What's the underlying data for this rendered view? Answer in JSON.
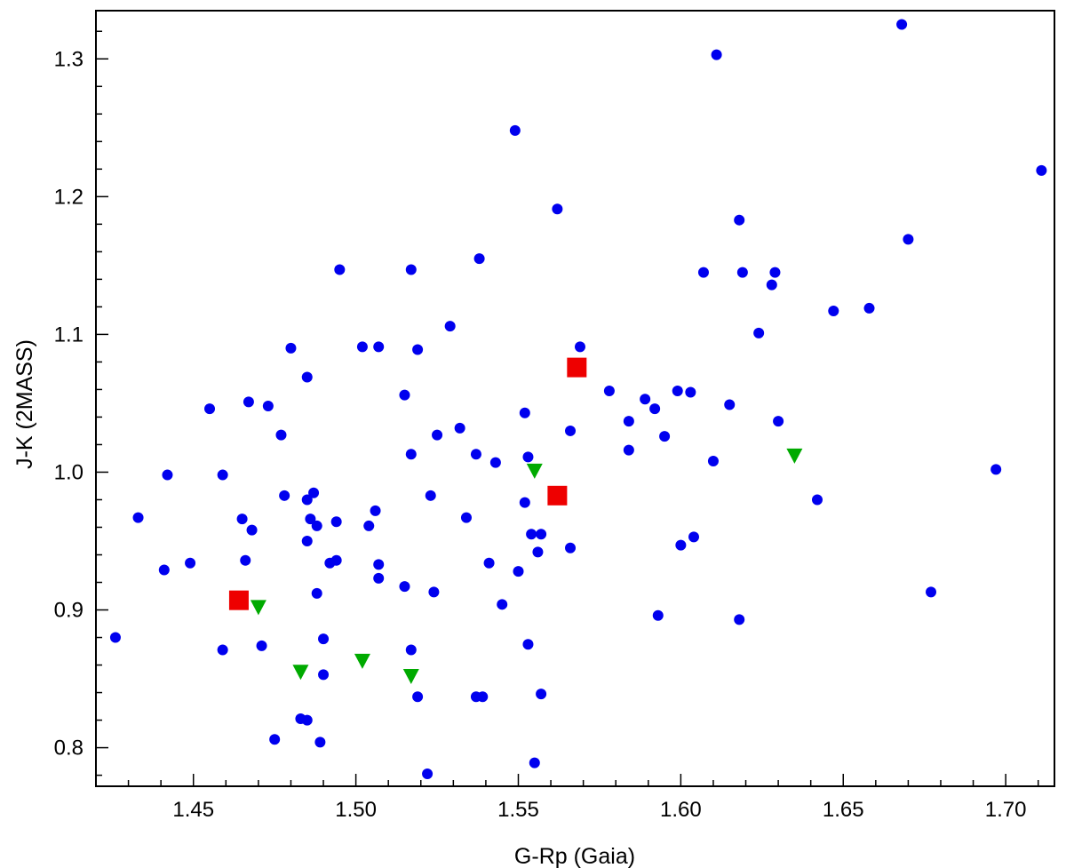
{
  "chart_data": {
    "type": "scatter",
    "title": "",
    "xlabel": "G-Rp (Gaia)",
    "ylabel": "J-K (2MASS)",
    "xlim": [
      1.42,
      1.715
    ],
    "ylim": [
      0.772,
      1.335
    ],
    "x_ticks": [
      "1.45",
      "1.50",
      "1.55",
      "1.60",
      "1.65",
      "1.70"
    ],
    "y_ticks": [
      "0.8",
      "0.9",
      "1.0",
      "1.1",
      "1.2",
      "1.3"
    ],
    "grid": false,
    "series": [
      {
        "marker": "circle",
        "color": "#0000ee",
        "points": [
          [
            1.668,
            1.325
          ],
          [
            1.611,
            1.303
          ],
          [
            1.549,
            1.248
          ],
          [
            1.711,
            1.219
          ],
          [
            1.562,
            1.191
          ],
          [
            1.618,
            1.183
          ],
          [
            1.67,
            1.169
          ],
          [
            1.538,
            1.155
          ],
          [
            1.495,
            1.147
          ],
          [
            1.517,
            1.147
          ],
          [
            1.607,
            1.145
          ],
          [
            1.619,
            1.145
          ],
          [
            1.629,
            1.145
          ],
          [
            1.628,
            1.136
          ],
          [
            1.658,
            1.119
          ],
          [
            1.647,
            1.117
          ],
          [
            1.529,
            1.106
          ],
          [
            1.624,
            1.101
          ],
          [
            1.48,
            1.09
          ],
          [
            1.502,
            1.091
          ],
          [
            1.507,
            1.091
          ],
          [
            1.519,
            1.089
          ],
          [
            1.569,
            1.091
          ],
          [
            1.485,
            1.069
          ],
          [
            1.578,
            1.059
          ],
          [
            1.599,
            1.059
          ],
          [
            1.603,
            1.058
          ],
          [
            1.515,
            1.056
          ],
          [
            1.589,
            1.053
          ],
          [
            1.467,
            1.051
          ],
          [
            1.615,
            1.049
          ],
          [
            1.473,
            1.048
          ],
          [
            1.455,
            1.046
          ],
          [
            1.592,
            1.046
          ],
          [
            1.552,
            1.043
          ],
          [
            1.584,
            1.037
          ],
          [
            1.63,
            1.037
          ],
          [
            1.532,
            1.032
          ],
          [
            1.566,
            1.03
          ],
          [
            1.477,
            1.027
          ],
          [
            1.525,
            1.027
          ],
          [
            1.595,
            1.026
          ],
          [
            1.584,
            1.016
          ],
          [
            1.517,
            1.013
          ],
          [
            1.537,
            1.013
          ],
          [
            1.553,
            1.011
          ],
          [
            1.61,
            1.008
          ],
          [
            1.543,
            1.007
          ],
          [
            1.442,
            0.998
          ],
          [
            1.459,
            0.998
          ],
          [
            1.697,
            1.002
          ],
          [
            1.487,
            0.985
          ],
          [
            1.478,
            0.983
          ],
          [
            1.523,
            0.983
          ],
          [
            1.485,
            0.98
          ],
          [
            1.642,
            0.98
          ],
          [
            1.552,
            0.978
          ],
          [
            1.488,
            0.961
          ],
          [
            1.506,
            0.972
          ],
          [
            1.433,
            0.967
          ],
          [
            1.465,
            0.966
          ],
          [
            1.486,
            0.966
          ],
          [
            1.494,
            0.964
          ],
          [
            1.534,
            0.967
          ],
          [
            1.504,
            0.961
          ],
          [
            1.468,
            0.958
          ],
          [
            1.554,
            0.955
          ],
          [
            1.557,
            0.955
          ],
          [
            1.604,
            0.953
          ],
          [
            1.485,
            0.95
          ],
          [
            1.6,
            0.947
          ],
          [
            1.566,
            0.945
          ],
          [
            1.556,
            0.942
          ],
          [
            1.466,
            0.936
          ],
          [
            1.494,
            0.936
          ],
          [
            1.492,
            0.934
          ],
          [
            1.507,
            0.933
          ],
          [
            1.449,
            0.934
          ],
          [
            1.541,
            0.934
          ],
          [
            1.441,
            0.929
          ],
          [
            1.55,
            0.928
          ],
          [
            1.507,
            0.923
          ],
          [
            1.515,
            0.917
          ],
          [
            1.488,
            0.912
          ],
          [
            1.524,
            0.913
          ],
          [
            1.677,
            0.913
          ],
          [
            1.545,
            0.904
          ],
          [
            1.593,
            0.896
          ],
          [
            1.618,
            0.893
          ],
          [
            1.426,
            0.88
          ],
          [
            1.49,
            0.879
          ],
          [
            1.553,
            0.875
          ],
          [
            1.471,
            0.874
          ],
          [
            1.459,
            0.871
          ],
          [
            1.517,
            0.871
          ],
          [
            1.49,
            0.853
          ],
          [
            1.557,
            0.839
          ],
          [
            1.519,
            0.837
          ],
          [
            1.537,
            0.837
          ],
          [
            1.539,
            0.837
          ],
          [
            1.483,
            0.821
          ],
          [
            1.485,
            0.82
          ],
          [
            1.475,
            0.806
          ],
          [
            1.489,
            0.804
          ],
          [
            1.555,
            0.789
          ],
          [
            1.522,
            0.781
          ]
        ]
      },
      {
        "marker": "square",
        "color": "#ee0000",
        "points": [
          [
            1.568,
            1.076
          ],
          [
            1.562,
            0.983
          ],
          [
            1.464,
            0.907
          ]
        ]
      },
      {
        "marker": "triangle-down",
        "color": "#00aa00",
        "points": [
          [
            1.555,
            1.001
          ],
          [
            1.635,
            1.012
          ],
          [
            1.47,
            0.902
          ],
          [
            1.483,
            0.855
          ],
          [
            1.502,
            0.863
          ],
          [
            1.517,
            0.852
          ]
        ]
      }
    ]
  }
}
